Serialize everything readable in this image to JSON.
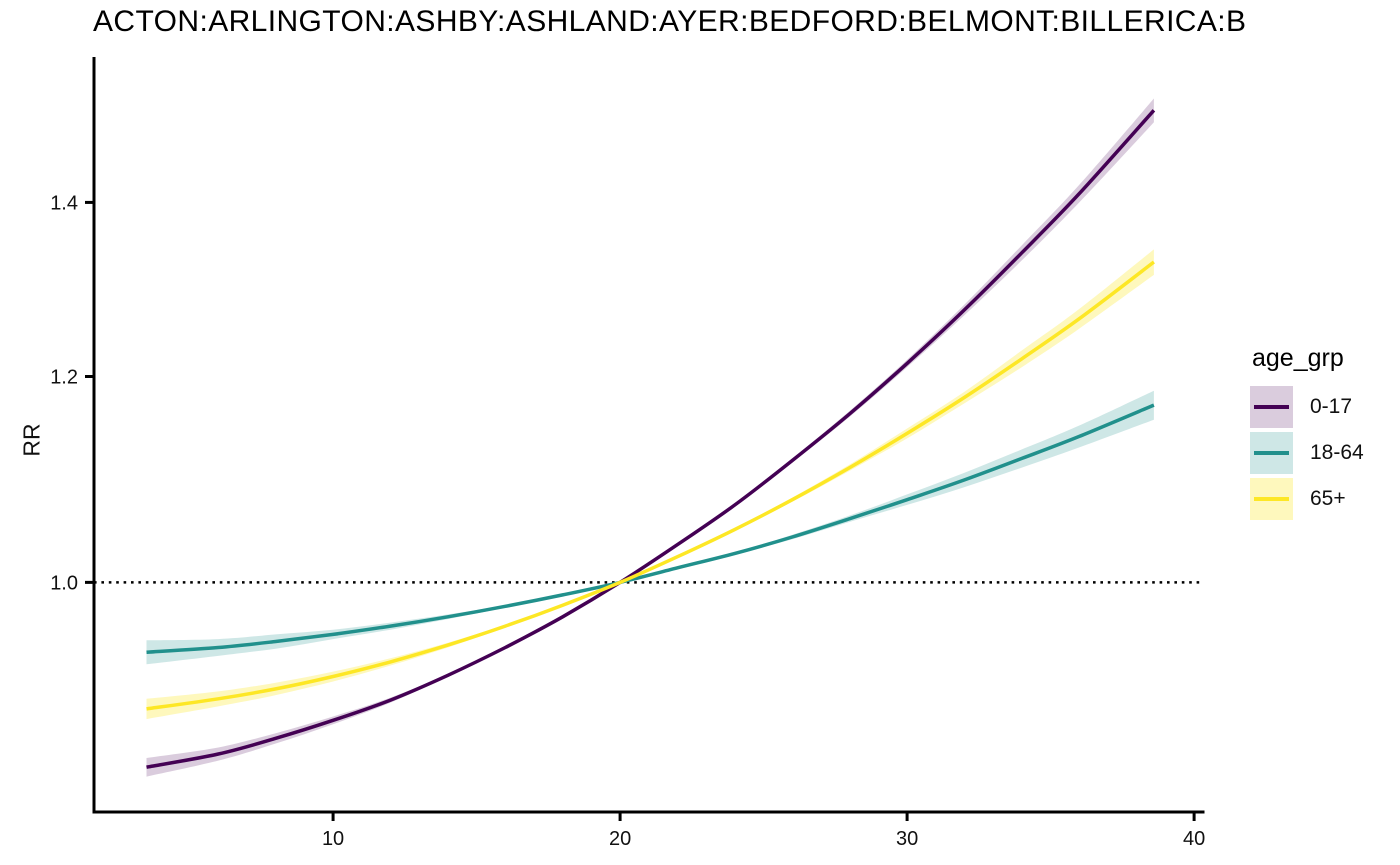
{
  "chart_data": {
    "type": "line",
    "title": "ACTON:ARLINGTON:ASHBY:ASHLAND:AYER:BEDFORD:BELMONT:BILLERICA:B",
    "xlabel": "",
    "ylabel": "RR",
    "y_scale": "log10",
    "grid": false,
    "x_ticks": [
      10,
      20,
      30,
      40
    ],
    "y_ticks": [
      1.0,
      1.2,
      1.4
    ],
    "y_tick_labels": [
      "1.0",
      "1.2",
      "1.4"
    ],
    "xlim": [
      1.67,
      40.31
    ],
    "ylim": [
      0.816,
      1.591
    ],
    "reference_line": {
      "y": 1.0,
      "style": "dotted",
      "color": "#000000"
    },
    "x": [
      3.5,
      6,
      8,
      10,
      12,
      14,
      16,
      18,
      20,
      22,
      24,
      26,
      28,
      30,
      32,
      34,
      36,
      38.6
    ],
    "series": [
      {
        "name": "0-17",
        "color": "#440154",
        "ribbon_color": "#440154",
        "ribbon_alpha": 0.2,
        "rr": [
          0.849,
          0.859,
          0.871,
          0.885,
          0.901,
          0.921,
          0.944,
          0.97,
          1.0,
          1.034,
          1.071,
          1.114,
          1.161,
          1.214,
          1.273,
          1.339,
          1.411,
          1.519
        ],
        "lo": [
          0.842,
          0.854,
          0.867,
          0.882,
          0.899,
          0.92,
          0.943,
          0.97,
          1.0,
          1.034,
          1.07,
          1.112,
          1.158,
          1.21,
          1.267,
          1.33,
          1.4,
          1.503
        ],
        "hi": [
          0.856,
          0.864,
          0.875,
          0.888,
          0.903,
          0.922,
          0.945,
          0.97,
          1.0,
          1.034,
          1.072,
          1.116,
          1.164,
          1.218,
          1.279,
          1.348,
          1.422,
          1.535
        ]
      },
      {
        "name": "18-64",
        "color": "#21908C",
        "ribbon_color": "#21908C",
        "ribbon_alpha": 0.22,
        "rr": [
          0.94,
          0.944,
          0.949,
          0.955,
          0.962,
          0.97,
          0.979,
          0.989,
          1.0,
          1.013,
          1.026,
          1.041,
          1.058,
          1.076,
          1.095,
          1.116,
          1.138,
          1.17
        ],
        "lo": [
          0.93,
          0.937,
          0.943,
          0.951,
          0.959,
          0.968,
          0.978,
          0.989,
          1.0,
          1.013,
          1.025,
          1.039,
          1.055,
          1.071,
          1.088,
          1.107,
          1.127,
          1.155
        ],
        "hi": [
          0.95,
          0.951,
          0.955,
          0.959,
          0.965,
          0.972,
          0.98,
          0.989,
          1.0,
          1.013,
          1.027,
          1.043,
          1.061,
          1.081,
          1.102,
          1.125,
          1.149,
          1.185
        ]
      },
      {
        "name": "65+",
        "color": "#FDE725",
        "ribbon_color": "#FDE725",
        "ribbon_alpha": 0.3,
        "rr": [
          0.894,
          0.902,
          0.91,
          0.92,
          0.932,
          0.946,
          0.962,
          0.98,
          1.0,
          1.023,
          1.048,
          1.076,
          1.107,
          1.141,
          1.178,
          1.219,
          1.263,
          1.328
        ],
        "lo": [
          0.886,
          0.896,
          0.905,
          0.916,
          0.929,
          0.944,
          0.961,
          0.98,
          1.0,
          1.023,
          1.047,
          1.074,
          1.104,
          1.136,
          1.172,
          1.21,
          1.252,
          1.313
        ],
        "hi": [
          0.902,
          0.908,
          0.915,
          0.924,
          0.935,
          0.948,
          0.963,
          0.98,
          1.0,
          1.023,
          1.049,
          1.078,
          1.11,
          1.146,
          1.184,
          1.228,
          1.274,
          1.343
        ]
      }
    ],
    "legend": {
      "title": "age_grp",
      "position": "right",
      "items": [
        {
          "label": "0-17"
        },
        {
          "label": "18-64"
        },
        {
          "label": "65+"
        }
      ]
    }
  }
}
